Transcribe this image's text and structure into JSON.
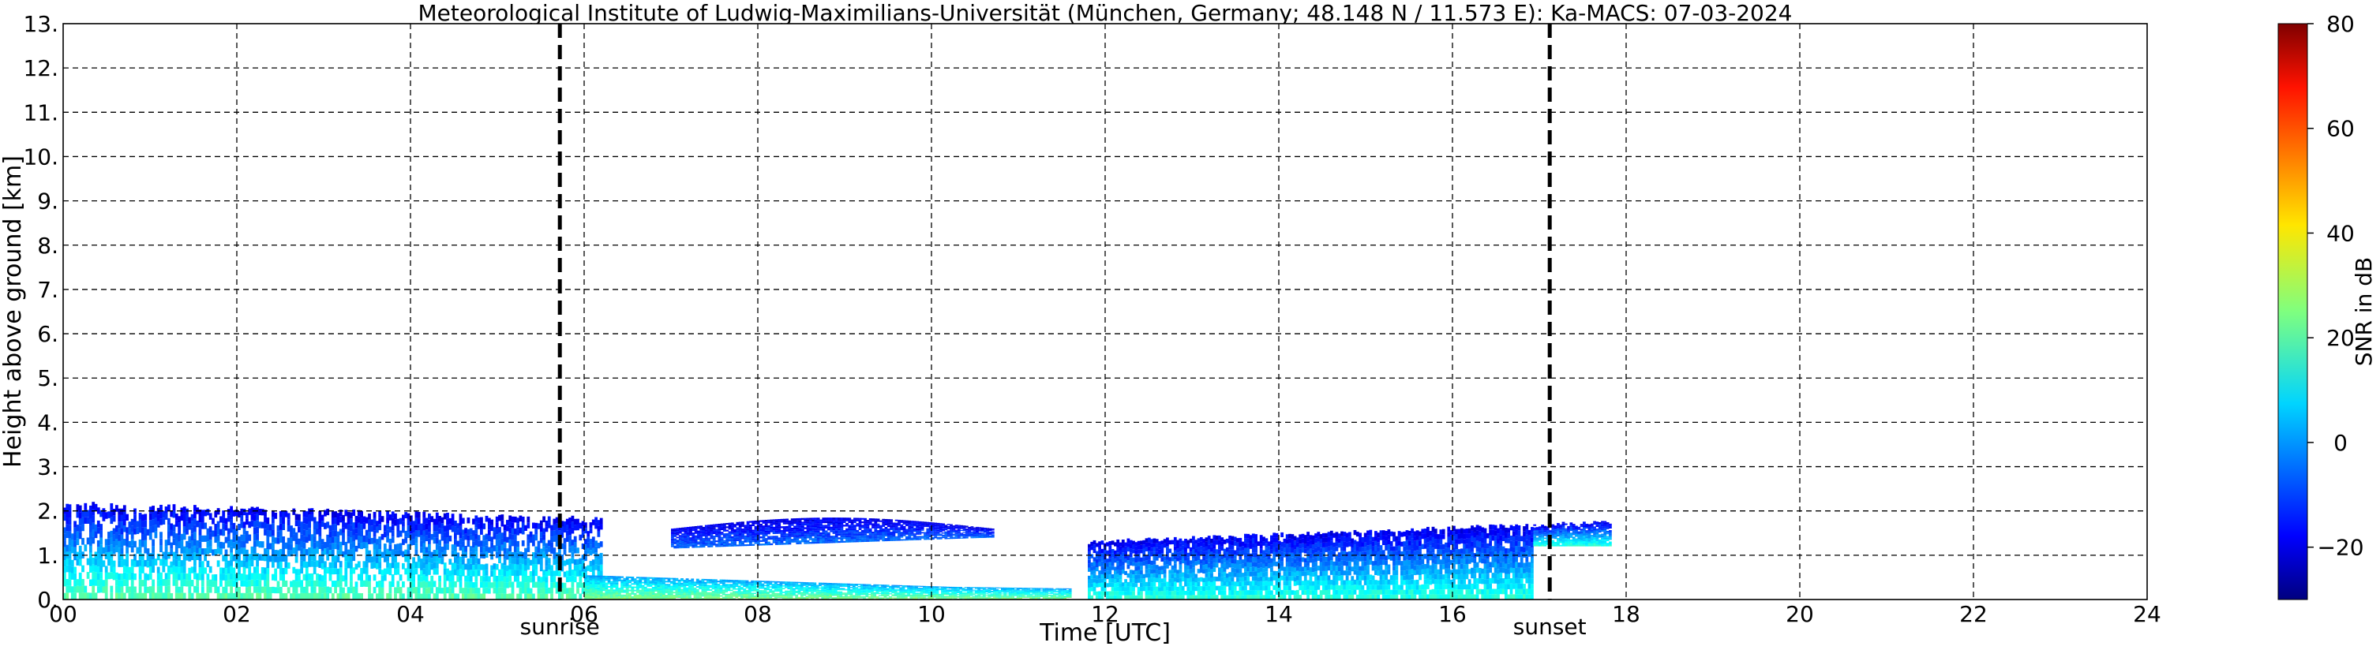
{
  "chart_data": {
    "type": "heatmap",
    "title": "Meteorological Institute of Ludwig-Maximilians-Universität (München, Germany; 48.148 N / 11.573 E):    Ka-MACS: 07-03-2024",
    "xlabel": "Time [UTC]",
    "ylabel": "Height above ground [km]",
    "xlim": [
      0,
      24
    ],
    "ylim": [
      0,
      13
    ],
    "xticks": [
      "00",
      "02",
      "04",
      "06",
      "08",
      "10",
      "12",
      "14",
      "16",
      "18",
      "20",
      "22",
      "24"
    ],
    "yticks": [
      "0.",
      "1.",
      "2.",
      "3.",
      "4.",
      "5.",
      "6.",
      "7.",
      "8.",
      "9.",
      "10.",
      "11.",
      "12.",
      "13."
    ],
    "grid": true,
    "colorbar": {
      "label": "SNR in dB",
      "range": [
        -30,
        80
      ],
      "ticks": [
        "−20",
        "0",
        "20",
        "40",
        "60",
        "80"
      ],
      "colormap": "jet"
    },
    "markers": [
      {
        "name": "sunrise",
        "time_utc": 5.72
      },
      {
        "name": "sunset",
        "time_utc": 17.12
      }
    ],
    "echo_regions": [
      {
        "desc": "low-level layer with scattered echoes",
        "t_start": 0.0,
        "t_end": 6.2,
        "h_base_km": 0.0,
        "h_top_km": 2.2,
        "snr_db_typical": [
          -20,
          20
        ]
      },
      {
        "desc": "near-surface layer",
        "t_start": 6.0,
        "t_end": 11.6,
        "h_base_km": 0.0,
        "h_top_km": 0.6,
        "snr_db_typical": [
          0,
          25
        ]
      },
      {
        "desc": "elevated cloud layer",
        "t_start": 7.0,
        "t_end": 10.7,
        "h_base_km": 1.1,
        "h_top_km": 1.9,
        "snr_db_typical": [
          -20,
          -5
        ]
      },
      {
        "desc": "deepening layer",
        "t_start": 11.8,
        "t_end": 17.8,
        "h_base_km": 0.0,
        "h_top_km": 1.8,
        "snr_db_typical": [
          -20,
          15
        ]
      }
    ]
  }
}
